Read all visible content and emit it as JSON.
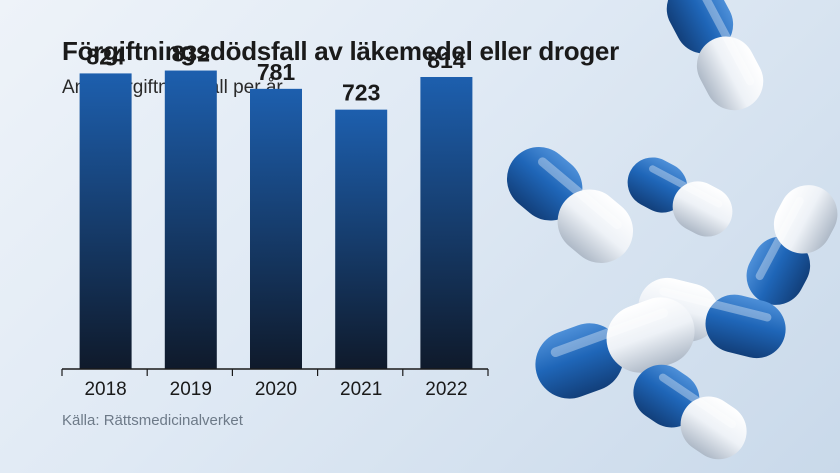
{
  "title": "Förgiftningsdödsfall av läkemedel eller droger",
  "subtitle": "Antal förgiftningsfall per år.",
  "source": "Källa: Rättsmedicinalverket",
  "colors": {
    "bar_top": "#1d5fae",
    "bar_bottom": "#0f1a2b",
    "text": "#1a1a1a",
    "pill_blue": "#1f66b8",
    "pill_white": "#f4f6f9"
  },
  "decoration": "blue-and-white capsule pills",
  "chart_data": {
    "type": "bar",
    "categories": [
      "2018",
      "2019",
      "2020",
      "2021",
      "2022"
    ],
    "values": [
      824,
      832,
      781,
      723,
      814
    ],
    "title": "Förgiftningsdödsfall av läkemedel eller droger",
    "subtitle": "Antal förgiftningsfall per år.",
    "xlabel": "",
    "ylabel": "",
    "ylim": [
      0,
      950
    ],
    "grid": false,
    "data_labels": true
  }
}
